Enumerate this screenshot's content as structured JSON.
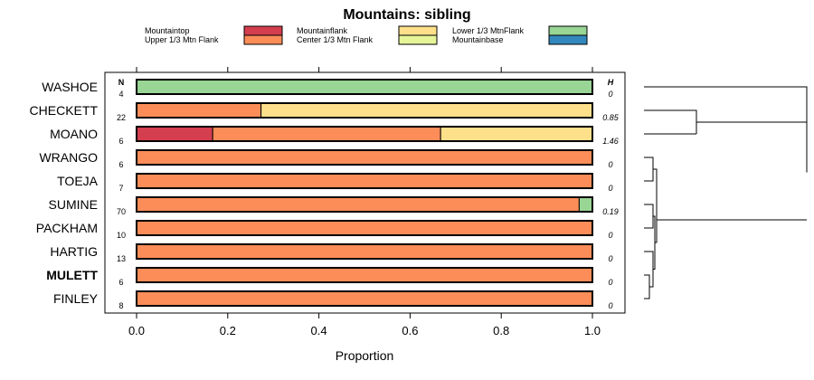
{
  "chart_data": {
    "type": "stacked-bar",
    "title": "Mountains: sibling",
    "xlabel": "Proportion",
    "xlim": [
      0,
      1
    ],
    "xticks": [
      "0.0",
      "0.2",
      "0.4",
      "0.6",
      "0.8",
      "1.0"
    ],
    "n_header": "N",
    "h_header": "H",
    "legend": [
      {
        "key": "mountaintop",
        "label": "Mountaintop",
        "color": "#d53e4f"
      },
      {
        "key": "upper",
        "label": "Upper 1/3 Mtn Flank",
        "color": "#fc8d59"
      },
      {
        "key": "mountainflank",
        "label": "Mountainflank",
        "color": "#fee08b"
      },
      {
        "key": "center",
        "label": "Center 1/3 Mtn Flank",
        "color": "#e6f598"
      },
      {
        "key": "lower",
        "label": "Lower 1/3 MtnFlank",
        "color": "#99d594"
      },
      {
        "key": "mountainbase",
        "label": "Mountainbase",
        "color": "#3288bd"
      }
    ],
    "rows": [
      {
        "name": "WASHOE",
        "n": "4",
        "h": "0",
        "bold": false,
        "segments": [
          {
            "cat": "lower",
            "value": 1.0
          }
        ]
      },
      {
        "name": "CHECKETT",
        "n": "22",
        "h": "0.85",
        "bold": false,
        "segments": [
          {
            "cat": "upper",
            "value": 0.273
          },
          {
            "cat": "mountainflank",
            "value": 0.727
          }
        ]
      },
      {
        "name": "MOANO",
        "n": "6",
        "h": "1.46",
        "bold": false,
        "segments": [
          {
            "cat": "mountaintop",
            "value": 0.167
          },
          {
            "cat": "upper",
            "value": 0.5
          },
          {
            "cat": "mountainflank",
            "value": 0.333
          }
        ]
      },
      {
        "name": "WRANGO",
        "n": "6",
        "h": "0",
        "bold": false,
        "segments": [
          {
            "cat": "upper",
            "value": 1.0
          }
        ]
      },
      {
        "name": "TOEJA",
        "n": "7",
        "h": "0",
        "bold": false,
        "segments": [
          {
            "cat": "upper",
            "value": 1.0
          }
        ]
      },
      {
        "name": "SUMINE",
        "n": "70",
        "h": "0.19",
        "bold": false,
        "segments": [
          {
            "cat": "upper",
            "value": 0.971
          },
          {
            "cat": "lower",
            "value": 0.029
          }
        ]
      },
      {
        "name": "PACKHAM",
        "n": "10",
        "h": "0",
        "bold": false,
        "segments": [
          {
            "cat": "upper",
            "value": 1.0
          }
        ]
      },
      {
        "name": "HARTIG",
        "n": "13",
        "h": "0",
        "bold": false,
        "segments": [
          {
            "cat": "upper",
            "value": 1.0
          }
        ]
      },
      {
        "name": "MULETT",
        "n": "6",
        "h": "0",
        "bold": true,
        "segments": [
          {
            "cat": "upper",
            "value": 1.0
          }
        ]
      },
      {
        "name": "FINLEY",
        "n": "8",
        "h": "0",
        "bold": false,
        "segments": [
          {
            "cat": "upper",
            "value": 1.0
          }
        ]
      }
    ]
  }
}
